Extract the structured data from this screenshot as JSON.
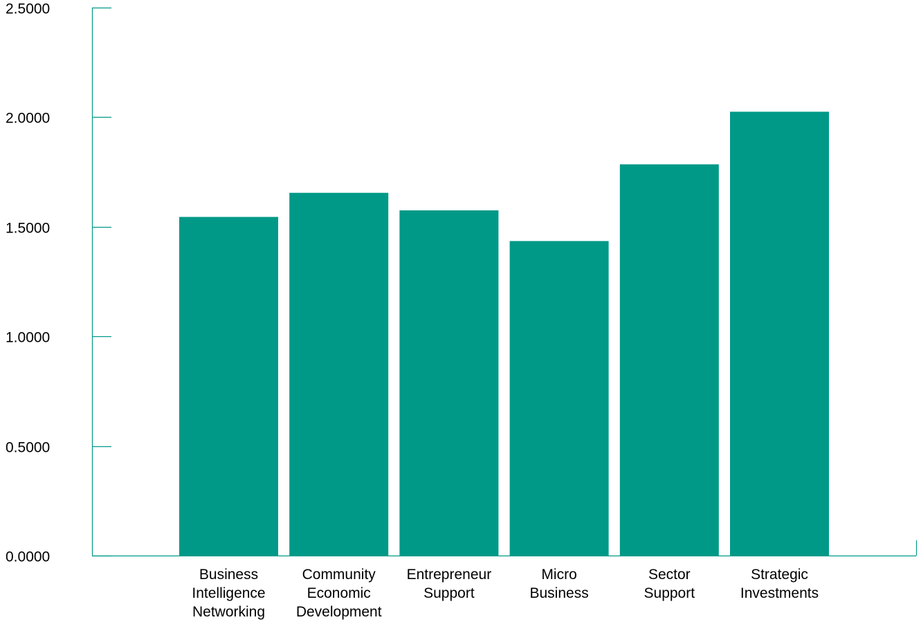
{
  "chart_data": {
    "type": "bar",
    "title": "",
    "xlabel": "",
    "ylabel": "",
    "categories": [
      "Business Intelligence Networking",
      "Community Economic Development",
      "Entrepreneur Support",
      "Micro Business",
      "Sector Support",
      "Strategic Investments"
    ],
    "category_lines": [
      [
        "Business",
        "Intelligence",
        "Networking"
      ],
      [
        "Community",
        "Economic",
        "Development"
      ],
      [
        "Entrepreneur",
        "Support"
      ],
      [
        "Micro",
        "Business"
      ],
      [
        "Sector",
        "Support"
      ],
      [
        "Strategic",
        "Investments"
      ]
    ],
    "values": [
      1.545,
      1.655,
      1.575,
      1.435,
      1.785,
      2.025
    ],
    "ylim": [
      0,
      2.5
    ],
    "yticks": [
      0,
      0.5,
      1.0,
      1.5,
      2.0,
      2.5
    ],
    "ytick_labels": [
      "0.0000",
      "0.5000",
      "1.0000",
      "1.5000",
      "2.0000",
      "2.5000"
    ],
    "grid": false,
    "legend": "none",
    "colors": {
      "bar": "#009987",
      "axis": "#009987"
    }
  }
}
